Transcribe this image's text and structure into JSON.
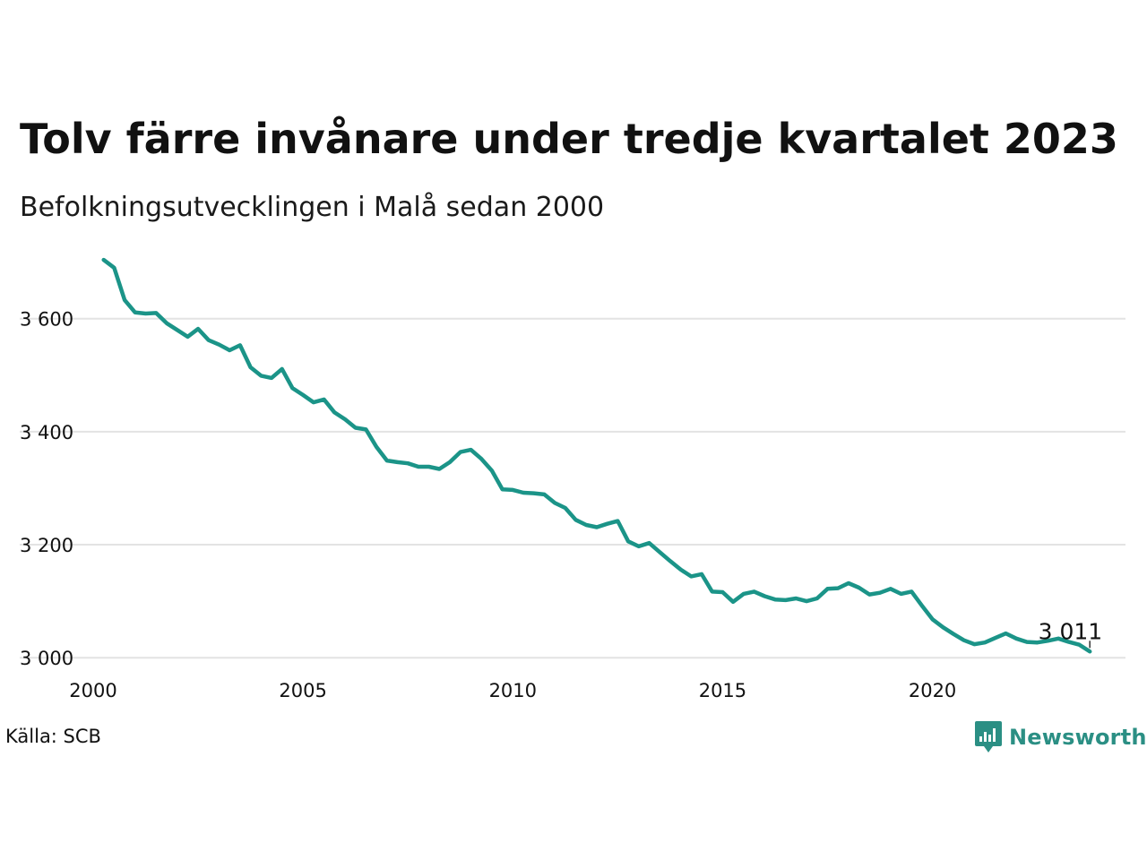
{
  "chart_data": {
    "type": "line",
    "title": "Tolv färre invånare under tredje kvartalet 2023",
    "subtitle": "Befolkningsutvecklingen i Malå sedan 2000",
    "xlabel": "",
    "ylabel": "",
    "xlim": [
      2000,
      2024.6
    ],
    "ylim": [
      2975,
      3720
    ],
    "x_ticks": [
      2000,
      2005,
      2010,
      2015,
      2020
    ],
    "x_tick_labels": [
      "2000",
      "2005",
      "2010",
      "2015",
      "2020"
    ],
    "y_ticks": [
      3000,
      3200,
      3400,
      3600
    ],
    "y_tick_labels": [
      "3 000",
      "3 200",
      "3 400",
      "3 600"
    ],
    "grid": "horizontal",
    "line_color": "#1b9488",
    "end_label": "3 011",
    "series": [
      {
        "values": [
          [
            2000.25,
            3704
          ],
          [
            2000.5,
            3690
          ],
          [
            2000.75,
            3633
          ],
          [
            2001.0,
            3611
          ],
          [
            2001.25,
            3609
          ],
          [
            2001.5,
            3610
          ],
          [
            2001.75,
            3592
          ],
          [
            2002.0,
            3580
          ],
          [
            2002.25,
            3568
          ],
          [
            2002.5,
            3582
          ],
          [
            2002.75,
            3562
          ],
          [
            2003.0,
            3554
          ],
          [
            2003.25,
            3544
          ],
          [
            2003.5,
            3553
          ],
          [
            2003.75,
            3514
          ],
          [
            2004.0,
            3499
          ],
          [
            2004.25,
            3495
          ],
          [
            2004.5,
            3511
          ],
          [
            2004.75,
            3477
          ],
          [
            2005.0,
            3465
          ],
          [
            2005.25,
            3452
          ],
          [
            2005.5,
            3457
          ],
          [
            2005.75,
            3434
          ],
          [
            2006.0,
            3422
          ],
          [
            2006.25,
            3407
          ],
          [
            2006.5,
            3404
          ],
          [
            2006.75,
            3373
          ],
          [
            2007.0,
            3349
          ],
          [
            2007.25,
            3346
          ],
          [
            2007.5,
            3344
          ],
          [
            2007.75,
            3338
          ],
          [
            2008.0,
            3338
          ],
          [
            2008.25,
            3334
          ],
          [
            2008.5,
            3346
          ],
          [
            2008.75,
            3364
          ],
          [
            2009.0,
            3368
          ],
          [
            2009.25,
            3352
          ],
          [
            2009.5,
            3331
          ],
          [
            2009.75,
            3298
          ],
          [
            2010.0,
            3297
          ],
          [
            2010.25,
            3292
          ],
          [
            2010.5,
            3291
          ],
          [
            2010.75,
            3289
          ],
          [
            2011.0,
            3274
          ],
          [
            2011.25,
            3265
          ],
          [
            2011.5,
            3244
          ],
          [
            2011.75,
            3235
          ],
          [
            2012.0,
            3231
          ],
          [
            2012.25,
            3237
          ],
          [
            2012.5,
            3242
          ],
          [
            2012.75,
            3206
          ],
          [
            2013.0,
            3197
          ],
          [
            2013.25,
            3203
          ],
          [
            2013.5,
            3187
          ],
          [
            2013.75,
            3171
          ],
          [
            2014.0,
            3156
          ],
          [
            2014.25,
            3144
          ],
          [
            2014.5,
            3148
          ],
          [
            2014.75,
            3117
          ],
          [
            2015.0,
            3116
          ],
          [
            2015.25,
            3099
          ],
          [
            2015.5,
            3113
          ],
          [
            2015.75,
            3117
          ],
          [
            2016.0,
            3109
          ],
          [
            2016.25,
            3103
          ],
          [
            2016.5,
            3102
          ],
          [
            2016.75,
            3105
          ],
          [
            2017.0,
            3100
          ],
          [
            2017.25,
            3105
          ],
          [
            2017.5,
            3122
          ],
          [
            2017.75,
            3123
          ],
          [
            2018.0,
            3132
          ],
          [
            2018.25,
            3124
          ],
          [
            2018.5,
            3112
          ],
          [
            2018.75,
            3115
          ],
          [
            2019.0,
            3122
          ],
          [
            2019.25,
            3113
          ],
          [
            2019.5,
            3117
          ],
          [
            2019.75,
            3092
          ],
          [
            2020.0,
            3068
          ],
          [
            2020.25,
            3054
          ],
          [
            2020.5,
            3042
          ],
          [
            2020.75,
            3031
          ],
          [
            2021.0,
            3024
          ],
          [
            2021.25,
            3027
          ],
          [
            2021.5,
            3035
          ],
          [
            2021.75,
            3043
          ],
          [
            2022.0,
            3034
          ],
          [
            2022.25,
            3028
          ],
          [
            2022.5,
            3027
          ],
          [
            2022.75,
            3030
          ],
          [
            2023.0,
            3034
          ],
          [
            2023.25,
            3028
          ],
          [
            2023.5,
            3023
          ],
          [
            2023.75,
            3011
          ]
        ]
      }
    ]
  },
  "footer": {
    "source": "Källa: SCB",
    "brand": "Newsworthy",
    "brand_color": "#2b8f84",
    "brand_icon": "newsworthy-logo-icon"
  }
}
